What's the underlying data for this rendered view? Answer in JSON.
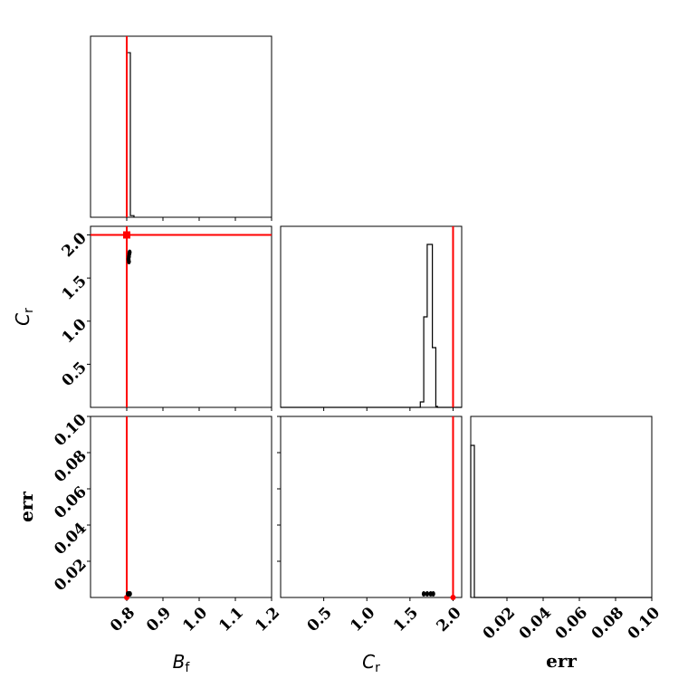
{
  "chart_data": {
    "type": "corner",
    "parameters": [
      {
        "key": "Bf",
        "label_main": "B",
        "label_sub": "f",
        "truth": 0.8,
        "range": [
          0.7,
          1.2
        ],
        "ticks": [
          0.8,
          0.9,
          1.0,
          1.1,
          1.2
        ],
        "tick_labels": [
          "0.8",
          "0.9",
          "1.0",
          "1.1",
          "1.2"
        ]
      },
      {
        "key": "Cr",
        "label_main": "C",
        "label_sub": "r",
        "truth": 2.0,
        "range": [
          0.0,
          2.1
        ],
        "ticks": [
          0.5,
          1.0,
          1.5,
          2.0
        ],
        "tick_labels": [
          "0.5",
          "1.0",
          "1.5",
          "2.0"
        ]
      },
      {
        "key": "err",
        "label": "err",
        "range": [
          0.0,
          0.1
        ],
        "ticks": [
          0.02,
          0.04,
          0.06,
          0.08,
          0.1
        ],
        "tick_labels": [
          "0.02",
          "0.04",
          "0.06",
          "0.08",
          "0.10"
        ]
      }
    ],
    "histograms": [
      {
        "param": "Bf",
        "edges": [
          0.8,
          0.81,
          0.82
        ],
        "counts": [
          1.0,
          0.01
        ],
        "ylim": [
          0,
          1.1
        ]
      },
      {
        "param": "Cr",
        "edges": [
          1.62,
          1.66,
          1.7,
          1.76,
          1.8,
          1.82
        ],
        "counts": [
          0.03,
          0.5,
          0.9,
          0.33,
          0.005
        ],
        "ylim": [
          0,
          1.0
        ]
      },
      {
        "param": "err",
        "edges": [
          0.0,
          0.002,
          0.003
        ],
        "counts": [
          0.84,
          0.0
        ],
        "ylim": [
          0,
          1.0
        ]
      }
    ],
    "scatter_2d": [
      {
        "x": "Bf",
        "y": "Cr",
        "points": [
          [
            0.805,
            1.72
          ],
          [
            0.806,
            1.75
          ],
          [
            0.807,
            1.78
          ],
          [
            0.808,
            1.8
          ],
          [
            0.806,
            1.69
          ]
        ]
      },
      {
        "x": "Bf",
        "y": "err",
        "points": [
          [
            0.803,
            0.002
          ],
          [
            0.806,
            0.002
          ],
          [
            0.809,
            0.002
          ]
        ]
      },
      {
        "x": "Cr",
        "y": "err",
        "points": [
          [
            1.66,
            0.002
          ],
          [
            1.7,
            0.002
          ],
          [
            1.74,
            0.002
          ],
          [
            1.77,
            0.002
          ]
        ]
      }
    ]
  }
}
